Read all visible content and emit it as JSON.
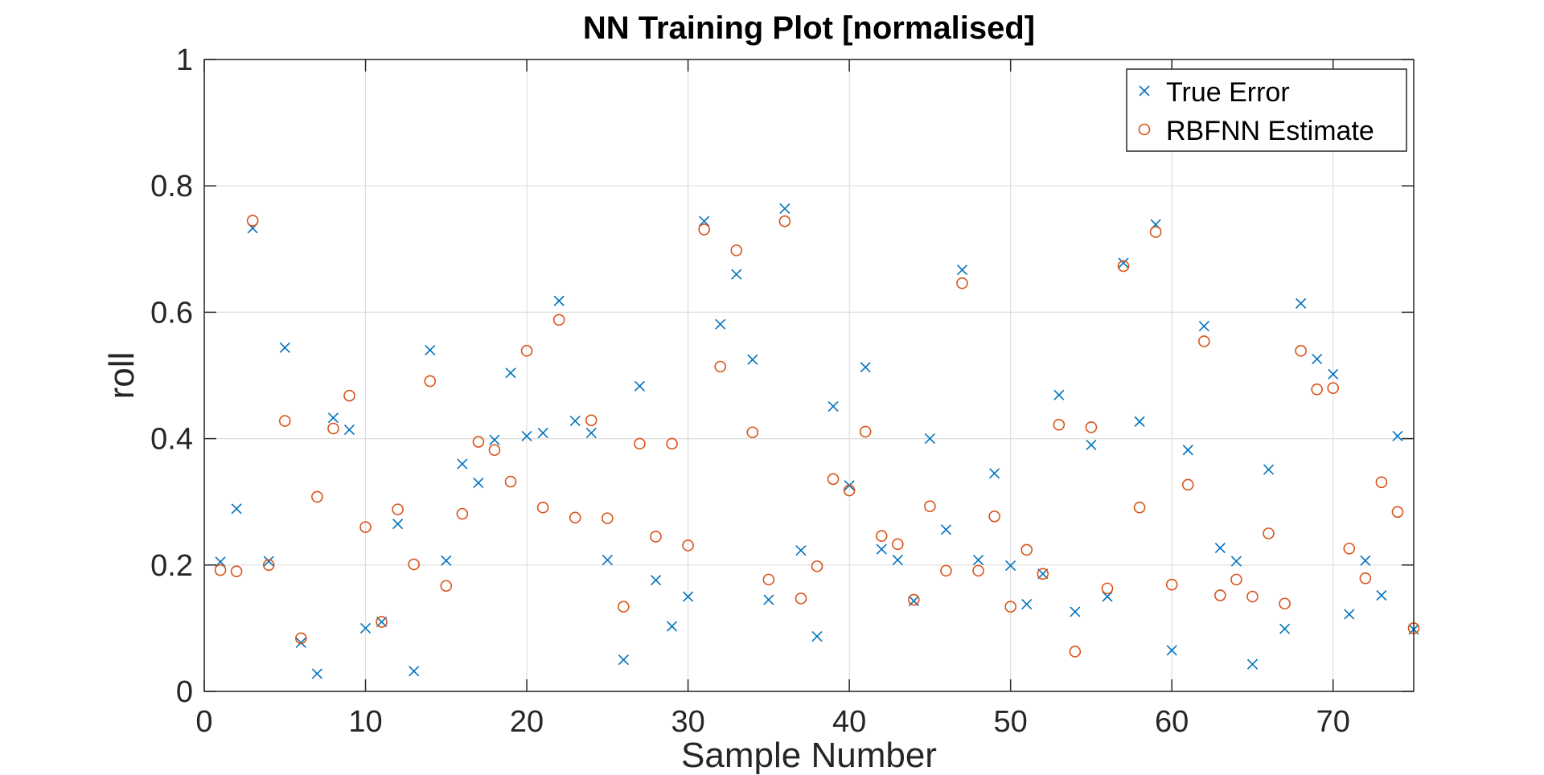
{
  "chart_data": {
    "type": "scatter",
    "title": "NN Training Plot [normalised]",
    "xlabel": "Sample Number",
    "ylabel": "roll",
    "xlim": [
      0,
      75
    ],
    "ylim": [
      0,
      1
    ],
    "xticks": [
      0,
      10,
      20,
      30,
      40,
      50,
      60,
      70
    ],
    "yticks": [
      0,
      0.2,
      0.4,
      0.6,
      0.8,
      1
    ],
    "ytick_labels": [
      "0",
      "0.2",
      "0.4",
      "0.6",
      "0.8",
      "1"
    ],
    "grid": true,
    "legend_position": "top-right",
    "x": [
      1,
      2,
      3,
      4,
      5,
      6,
      7,
      8,
      9,
      10,
      11,
      12,
      13,
      14,
      15,
      16,
      17,
      18,
      19,
      20,
      21,
      22,
      23,
      24,
      25,
      26,
      27,
      28,
      29,
      30,
      31,
      32,
      33,
      34,
      35,
      36,
      37,
      38,
      39,
      40,
      41,
      42,
      43,
      44,
      45,
      46,
      47,
      48,
      49,
      50,
      51,
      52,
      53,
      54,
      55,
      56,
      57,
      58,
      59,
      60,
      61,
      62,
      63,
      64,
      65,
      66,
      67,
      68,
      69,
      70,
      71,
      72,
      73,
      74,
      75
    ],
    "series": [
      {
        "name": "True Error",
        "marker": "x",
        "color": "#0072BD",
        "values": [
          0.205,
          0.289,
          0.733,
          0.206,
          0.544,
          0.077,
          0.028,
          0.433,
          0.414,
          0.1,
          0.11,
          0.265,
          0.032,
          0.54,
          0.207,
          0.36,
          0.33,
          0.398,
          0.504,
          0.404,
          0.409,
          0.618,
          0.428,
          0.409,
          0.208,
          0.05,
          0.483,
          0.176,
          0.103,
          0.15,
          0.744,
          0.581,
          0.66,
          0.525,
          0.145,
          0.764,
          0.223,
          0.087,
          0.451,
          0.326,
          0.513,
          0.225,
          0.208,
          0.143,
          0.4,
          0.256,
          0.667,
          0.208,
          0.345,
          0.199,
          0.138,
          0.186,
          0.469,
          0.126,
          0.39,
          0.15,
          0.678,
          0.427,
          0.739,
          0.065,
          0.382,
          0.578,
          0.227,
          0.206,
          0.043,
          0.351,
          0.099,
          0.614,
          0.526,
          0.502,
          0.122,
          0.207,
          0.152,
          0.404,
          0.098
        ]
      },
      {
        "name": "RBFNN Estimate",
        "marker": "o",
        "color": "#D95319",
        "values": [
          0.192,
          0.19,
          0.745,
          0.2,
          0.428,
          0.084,
          0.308,
          0.416,
          0.468,
          0.26,
          0.11,
          0.288,
          0.201,
          0.491,
          0.167,
          0.281,
          0.395,
          0.382,
          0.332,
          0.539,
          0.291,
          0.588,
          0.275,
          0.429,
          0.274,
          0.134,
          0.392,
          0.245,
          0.392,
          0.231,
          0.731,
          0.514,
          0.698,
          0.41,
          0.177,
          0.744,
          0.147,
          0.198,
          0.336,
          0.318,
          0.411,
          0.246,
          0.233,
          0.145,
          0.293,
          0.191,
          0.646,
          0.191,
          0.277,
          0.134,
          0.224,
          0.186,
          0.422,
          0.063,
          0.418,
          0.163,
          0.673,
          0.291,
          0.727,
          0.169,
          0.327,
          0.554,
          0.152,
          0.177,
          0.15,
          0.25,
          0.139,
          0.539,
          0.478,
          0.48,
          0.226,
          0.179,
          0.331,
          0.284,
          0.1
        ]
      }
    ]
  }
}
